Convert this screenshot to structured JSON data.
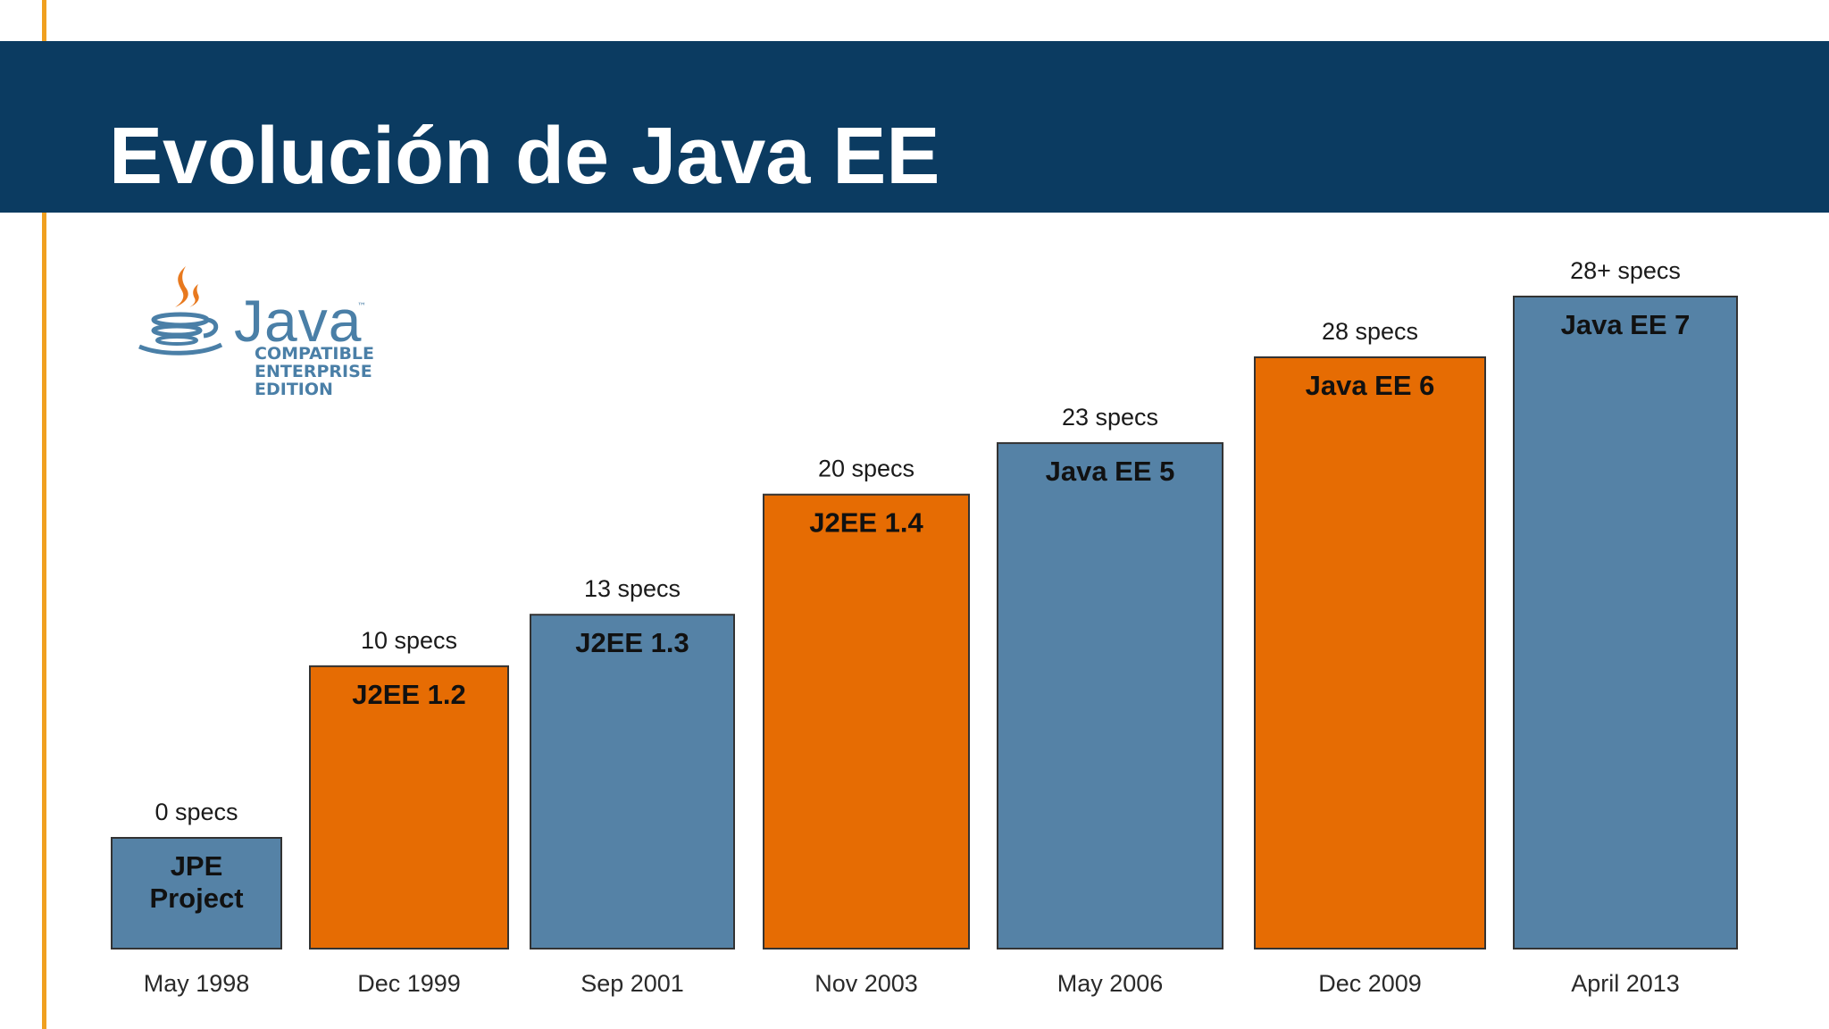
{
  "slide": {
    "title": "Evolución de Java EE"
  },
  "logo": {
    "word": "Java",
    "tm": "™",
    "lines": [
      "COMPATIBLE",
      "ENTERPRISE",
      "EDITION"
    ]
  },
  "colors": {
    "band": "#0b3b61",
    "accent_rule": "#f0a020",
    "blue_bar": "#5582a6",
    "orange_bar": "#e66c03",
    "bar_outline": "#333333"
  },
  "chart_data": {
    "type": "bar",
    "categories": [
      "May 1998",
      "Dec 1999",
      "Sep 2001",
      "Nov 2003",
      "May 2006",
      "Dec 2009",
      "April 2013"
    ],
    "values": [
      0,
      10,
      13,
      20,
      23,
      28,
      28
    ],
    "value_labels": [
      "0 specs",
      "10 specs",
      "13 specs",
      "20 specs",
      "23 specs",
      "28 specs",
      "28+ specs"
    ],
    "bar_titles": [
      [
        "JPE",
        "Project"
      ],
      [
        "J2EE 1.2"
      ],
      [
        "J2EE 1.3"
      ],
      [
        "J2EE 1.4"
      ],
      [
        "Java EE 5"
      ],
      [
        "Java EE 6"
      ],
      [
        "Java EE 7"
      ]
    ],
    "bar_colors": [
      "#5582a6",
      "#e66c03",
      "#5582a6",
      "#e66c03",
      "#5582a6",
      "#e66c03",
      "#5582a6"
    ],
    "title": "",
    "xlabel": "",
    "ylabel": "",
    "grid": false,
    "legend": "none"
  }
}
